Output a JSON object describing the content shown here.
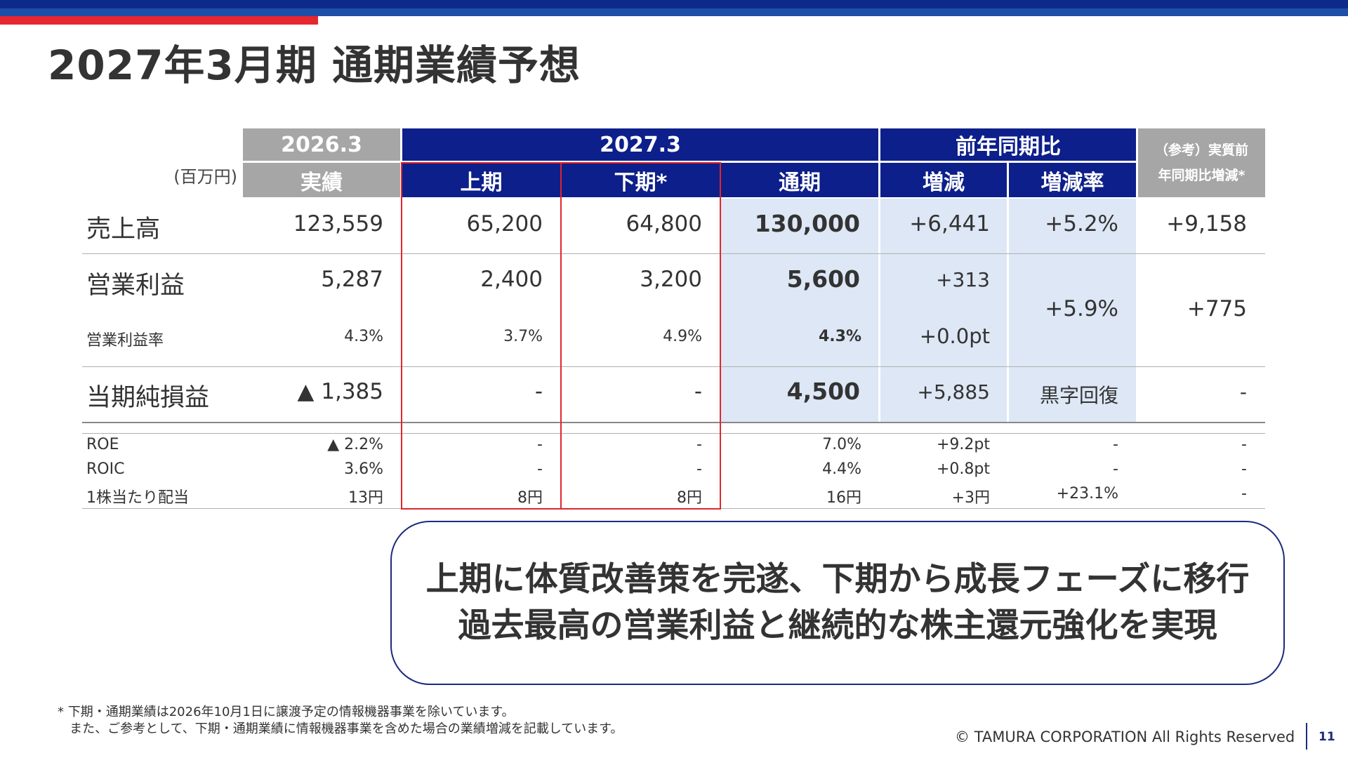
{
  "title": "2027年3月期 通期業績予想",
  "unit": "(百万円)",
  "headers": {
    "fy2026": "2026.3",
    "actual": "実績",
    "fy2027": "2027.3",
    "h1": "上期",
    "h2": "下期*",
    "full": "通期",
    "yoy": "前年同期比",
    "diff": "増減",
    "rate": "増減率",
    "ref_line1": "（参考）実質前",
    "ref_line2": "年同期比増減*"
  },
  "rows": {
    "sales": {
      "label": "売上高",
      "actual": "123,559",
      "h1": "65,200",
      "h2": "64,800",
      "full": "130,000",
      "diff": "+6,441",
      "rate": "+5.2%",
      "ref": "+9,158"
    },
    "op": {
      "label": "営業利益",
      "actual": "5,287",
      "h1": "2,400",
      "h2": "3,200",
      "full": "5,600",
      "diff": "+313",
      "rate": "+5.9%",
      "ref": "+775"
    },
    "opm": {
      "label": "営業利益率",
      "actual": "4.3%",
      "h1": "3.7%",
      "h2": "4.9%",
      "full": "4.3%",
      "diff": "+0.0pt"
    },
    "net": {
      "label": "当期純損益",
      "actual": "▲ 1,385",
      "h1": "-",
      "h2": "-",
      "full": "4,500",
      "diff": "+5,885",
      "rate": "黒字回復",
      "ref": "-"
    },
    "roe": {
      "label": "ROE",
      "actual": "▲ 2.2%",
      "h1": "-",
      "h2": "-",
      "full": "7.0%",
      "diff": "+9.2pt",
      "rate": "-",
      "ref": "-"
    },
    "roic": {
      "label": "ROIC",
      "actual": "3.6%",
      "h1": "-",
      "h2": "-",
      "full": "4.4%",
      "diff": "+0.8pt",
      "rate": "-",
      "ref": "-"
    },
    "dps": {
      "label": "1株当たり配当",
      "actual": "13円",
      "h1": "8円",
      "h2": "8円",
      "full": "16円",
      "diff": "+3円",
      "rate": "+23.1%",
      "ref": "-"
    }
  },
  "callout": {
    "line1": "上期に体質改善策を完遂、下期から成長フェーズに移行",
    "line2": "過去最高の営業利益と継続的な株主還元強化を実現"
  },
  "footnote": {
    "line1": "* 下期・通期業績は2026年10月1日に譲渡予定の情報機器事業を除いています。",
    "line2": "   また、ご参考として、下期・通期業績に情報機器事業を含めた場合の業績増減を記載しています。"
  },
  "copyright": "© TAMURA CORPORATION All Rights Reserved",
  "page_number": "11",
  "colors": {
    "navy": "#0d1f8a",
    "gray_header": "#a6a6a6",
    "highlight": "#dde7f5",
    "red": "#e0262e"
  }
}
